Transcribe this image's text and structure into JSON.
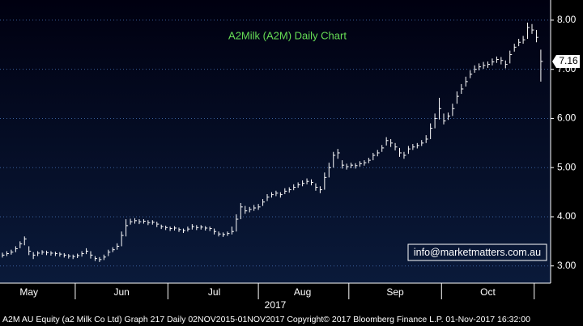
{
  "chart_data": {
    "type": "hlc_bar",
    "title": "A2Milk (A2M) Daily Chart",
    "watermark": "info@marketmatters.com.au",
    "x_axis_label": "2017",
    "footer": "A2M AU Equity (a2 Milk Co Ltd) Graph 217  Daily 02NOV2015-01NOV2017  Copyright© 2017 Bloomberg Finance L.P.   01-Nov-2017 16:32:00",
    "color": "#ffffff",
    "grid": true,
    "ylim": [
      2.65,
      8.41
    ],
    "yticks": [
      {
        "value": 3,
        "label": "3.00"
      },
      {
        "value": 4,
        "label": "4.00"
      },
      {
        "value": 5,
        "label": "5.00"
      },
      {
        "value": 6,
        "label": "6.00"
      },
      {
        "value": 7,
        "label": "7.00"
      },
      {
        "value": 8,
        "label": "8.00"
      }
    ],
    "categories": [
      null,
      null,
      null,
      null,
      null,
      null,
      "May",
      null,
      null,
      null,
      null,
      null,
      null,
      null,
      null,
      null,
      null,
      null,
      null,
      null,
      null,
      null,
      null,
      null,
      null,
      null,
      null,
      "Jun",
      null,
      null,
      null,
      null,
      null,
      null,
      null,
      null,
      null,
      null,
      null,
      null,
      null,
      null,
      null,
      null,
      null,
      null,
      null,
      null,
      "Jul",
      null,
      null,
      null,
      null,
      null,
      null,
      null,
      null,
      null,
      null,
      null,
      null,
      null,
      null,
      null,
      null,
      null,
      null,
      null,
      "Aug",
      null,
      null,
      null,
      null,
      null,
      null,
      null,
      null,
      null,
      null,
      null,
      null,
      null,
      null,
      null,
      null,
      null,
      null,
      null,
      null,
      "Sep",
      null,
      null,
      null,
      null,
      null,
      null,
      null,
      null,
      null,
      null,
      null,
      null,
      null,
      null,
      null,
      null,
      null,
      null,
      null,
      null,
      "Oct",
      null,
      null,
      null,
      null,
      null,
      null,
      null,
      null,
      null,
      null,
      null,
      null
    ],
    "values": [
      3.22,
      3.25,
      3.28,
      3.35,
      3.45,
      3.55,
      3.3,
      3.22,
      3.26,
      3.28,
      3.27,
      3.26,
      3.25,
      3.24,
      3.22,
      3.2,
      3.19,
      3.21,
      3.25,
      3.3,
      3.22,
      3.15,
      3.13,
      3.18,
      3.28,
      3.33,
      3.4,
      3.62,
      3.82,
      3.9,
      3.92,
      3.9,
      3.91,
      3.88,
      3.89,
      3.85,
      3.8,
      3.78,
      3.76,
      3.77,
      3.74,
      3.72,
      3.75,
      3.8,
      3.78,
      3.79,
      3.77,
      3.76,
      3.7,
      3.65,
      3.64,
      3.66,
      3.7,
      3.95,
      4.2,
      4.12,
      4.15,
      4.18,
      4.2,
      4.3,
      4.4,
      4.45,
      4.48,
      4.45,
      4.52,
      4.55,
      4.6,
      4.65,
      4.68,
      4.72,
      4.7,
      4.6,
      4.55,
      4.8,
      5.0,
      5.25,
      5.3,
      5.05,
      5.02,
      5.05,
      5.04,
      5.08,
      5.1,
      5.15,
      5.25,
      5.3,
      5.4,
      5.55,
      5.5,
      5.42,
      5.3,
      5.25,
      5.38,
      5.42,
      5.45,
      5.5,
      5.58,
      5.8,
      6.0,
      6.2,
      5.95,
      6.05,
      6.2,
      6.45,
      6.6,
      6.75,
      6.9,
      7.0,
      7.05,
      7.08,
      7.1,
      7.15,
      7.2,
      7.18,
      7.1,
      7.3,
      7.45,
      7.55,
      7.6,
      7.85,
      7.8,
      7.65,
      7.16
    ],
    "high": [
      3.27,
      3.3,
      3.33,
      3.4,
      3.5,
      3.6,
      3.4,
      3.28,
      3.3,
      3.32,
      3.31,
      3.3,
      3.29,
      3.28,
      3.26,
      3.24,
      3.23,
      3.25,
      3.3,
      3.36,
      3.3,
      3.2,
      3.18,
      3.23,
      3.33,
      3.38,
      3.46,
      3.7,
      3.95,
      3.96,
      3.97,
      3.95,
      3.95,
      3.93,
      3.93,
      3.9,
      3.84,
      3.82,
      3.8,
      3.81,
      3.78,
      3.76,
      3.8,
      3.85,
      3.83,
      3.83,
      3.81,
      3.8,
      3.76,
      3.7,
      3.68,
      3.7,
      3.8,
      4.05,
      4.28,
      4.22,
      4.2,
      4.24,
      4.26,
      4.36,
      4.46,
      4.5,
      4.53,
      4.5,
      4.58,
      4.6,
      4.66,
      4.7,
      4.74,
      4.78,
      4.76,
      4.68,
      4.62,
      4.9,
      5.1,
      5.32,
      5.38,
      5.15,
      5.08,
      5.1,
      5.09,
      5.13,
      5.15,
      5.2,
      5.3,
      5.36,
      5.46,
      5.62,
      5.58,
      5.5,
      5.4,
      5.32,
      5.44,
      5.48,
      5.5,
      5.56,
      5.66,
      5.9,
      6.1,
      6.42,
      6.1,
      6.12,
      6.3,
      6.55,
      6.7,
      6.85,
      6.98,
      7.08,
      7.12,
      7.15,
      7.16,
      7.22,
      7.26,
      7.25,
      7.18,
      7.38,
      7.52,
      7.62,
      7.68,
      7.95,
      7.92,
      7.8,
      7.4
    ],
    "low": [
      3.17,
      3.2,
      3.23,
      3.28,
      3.36,
      3.42,
      3.22,
      3.14,
      3.2,
      3.23,
      3.22,
      3.21,
      3.2,
      3.19,
      3.17,
      3.15,
      3.14,
      3.16,
      3.19,
      3.24,
      3.15,
      3.1,
      3.08,
      3.12,
      3.2,
      3.28,
      3.33,
      3.4,
      3.6,
      3.84,
      3.86,
      3.85,
      3.86,
      3.83,
      3.84,
      3.79,
      3.75,
      3.73,
      3.71,
      3.72,
      3.69,
      3.67,
      3.7,
      3.74,
      3.73,
      3.74,
      3.72,
      3.71,
      3.64,
      3.6,
      3.59,
      3.61,
      3.64,
      3.7,
      3.95,
      4.06,
      4.09,
      4.12,
      4.14,
      4.22,
      4.32,
      4.39,
      4.42,
      4.39,
      4.46,
      4.49,
      4.54,
      4.59,
      4.62,
      4.66,
      4.64,
      4.53,
      4.48,
      4.55,
      4.8,
      5.0,
      5.18,
      4.98,
      4.96,
      4.99,
      4.98,
      5.02,
      5.04,
      5.09,
      5.15,
      5.23,
      5.32,
      5.45,
      5.42,
      5.35,
      5.22,
      5.18,
      5.28,
      5.36,
      5.39,
      5.44,
      5.5,
      5.58,
      5.8,
      5.98,
      5.88,
      5.97,
      6.05,
      6.3,
      6.5,
      6.65,
      6.82,
      6.93,
      6.98,
      7.01,
      7.03,
      7.08,
      7.13,
      7.1,
      7.02,
      7.12,
      7.36,
      7.47,
      7.52,
      7.62,
      7.72,
      7.55,
      6.75
    ]
  }
}
